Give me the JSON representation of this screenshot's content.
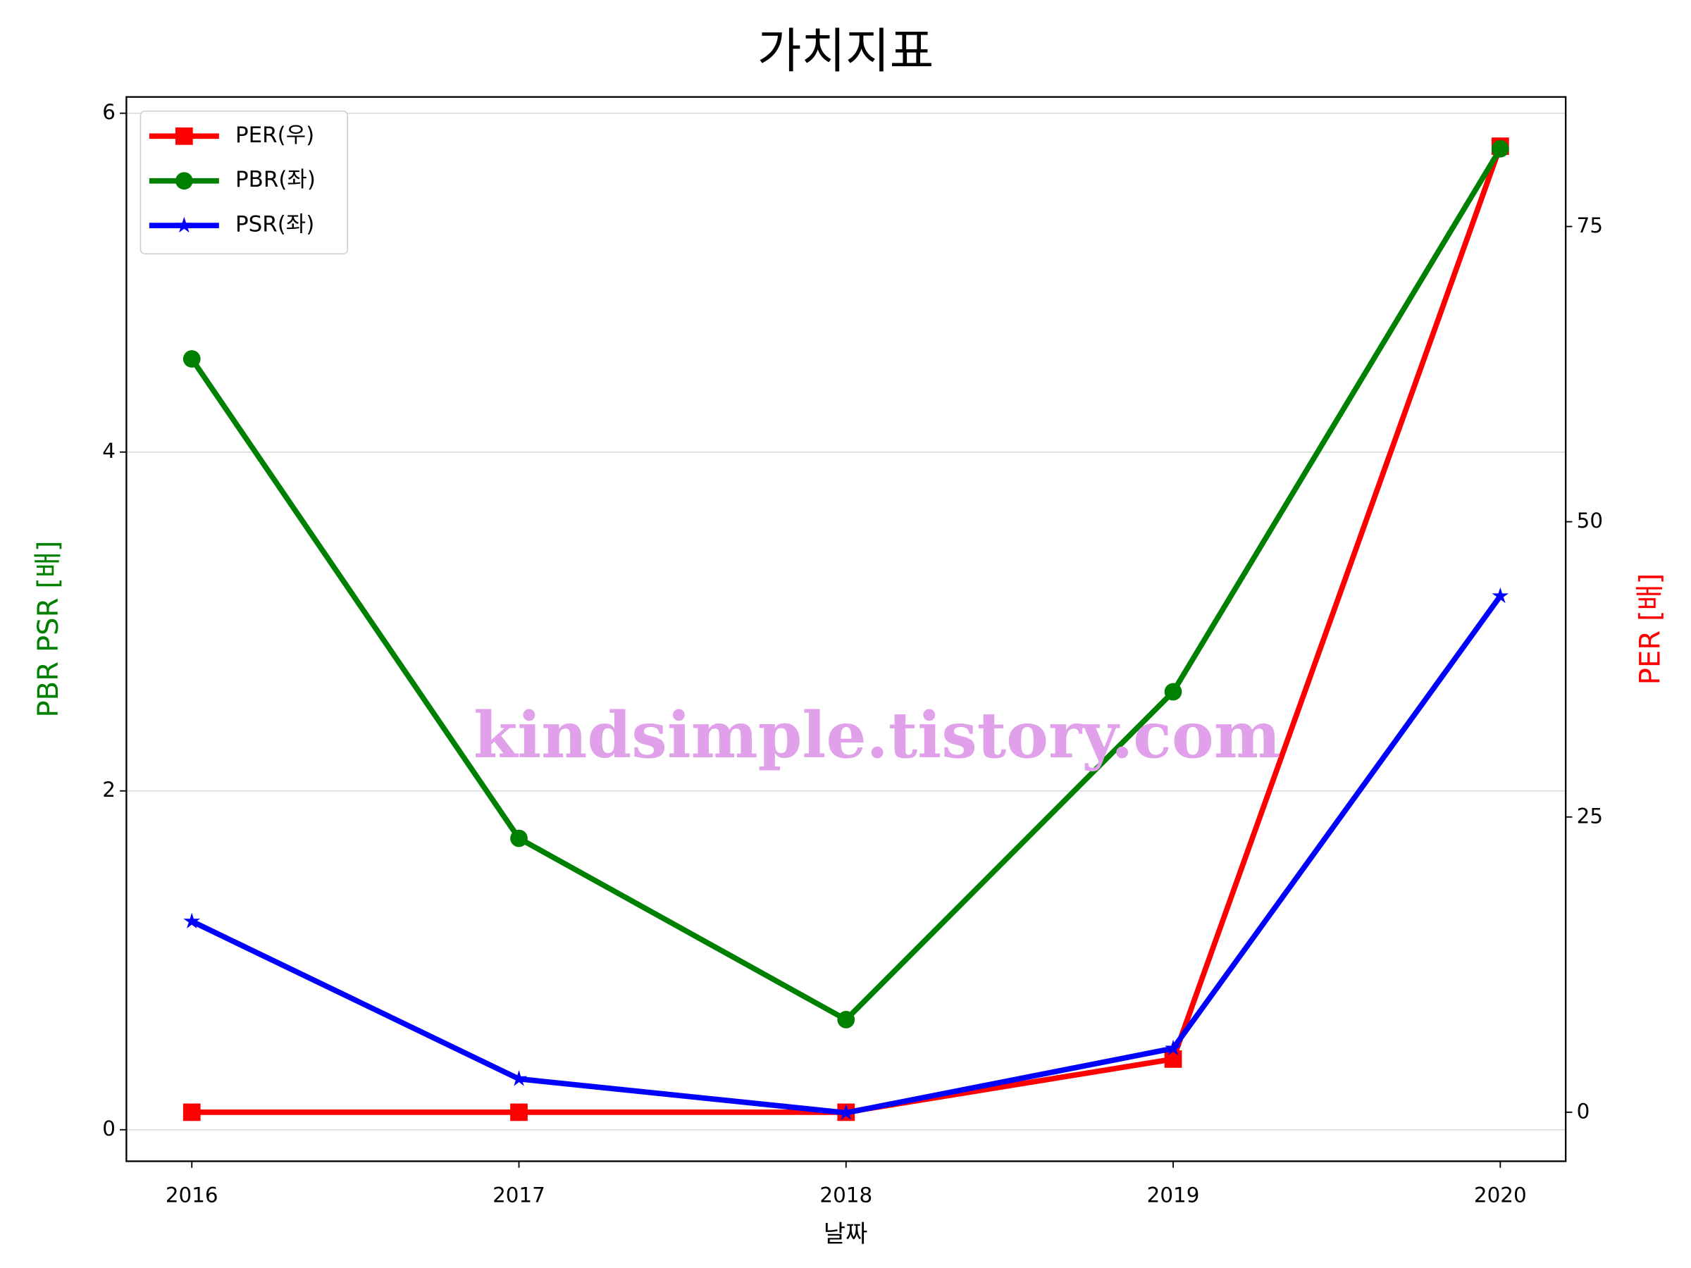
{
  "chart_data": {
    "type": "line",
    "title": "가치지표",
    "xlabel": "날짜",
    "ylabel": "PBR PSR [배]",
    "y2label": "PER [배]",
    "ylabel_color": "#008000",
    "y2label_color": "#ff0000",
    "watermark": "kindsimple.tistory.com",
    "x": [
      2016,
      2017,
      2018,
      2019,
      2020
    ],
    "xlim": [
      2015.8,
      2020.2
    ],
    "xticks": [
      2016,
      2017,
      2018,
      2019,
      2020
    ],
    "ylim": [
      -0.186,
      6.096
    ],
    "yticks": [
      0,
      2,
      4,
      6
    ],
    "y2lim": [
      -4.15,
      85.97
    ],
    "y2ticks": [
      0,
      25,
      50,
      75
    ],
    "grid": true,
    "legend": "upper left",
    "series": [
      {
        "name": "PER(우)",
        "color": "#ff0000",
        "marker": "square",
        "axis": "y2",
        "values": [
          0,
          0,
          0,
          4.5,
          81.8
        ]
      },
      {
        "name": "PBR(좌)",
        "color": "#008000",
        "marker": "circle",
        "values": [
          4.55,
          1.72,
          0.65,
          2.585,
          5.79
        ]
      },
      {
        "name": "PSR(좌)",
        "color": "#0000ff",
        "marker": "star",
        "values": [
          1.23,
          0.3,
          0.1,
          0.48,
          3.15
        ]
      }
    ]
  }
}
